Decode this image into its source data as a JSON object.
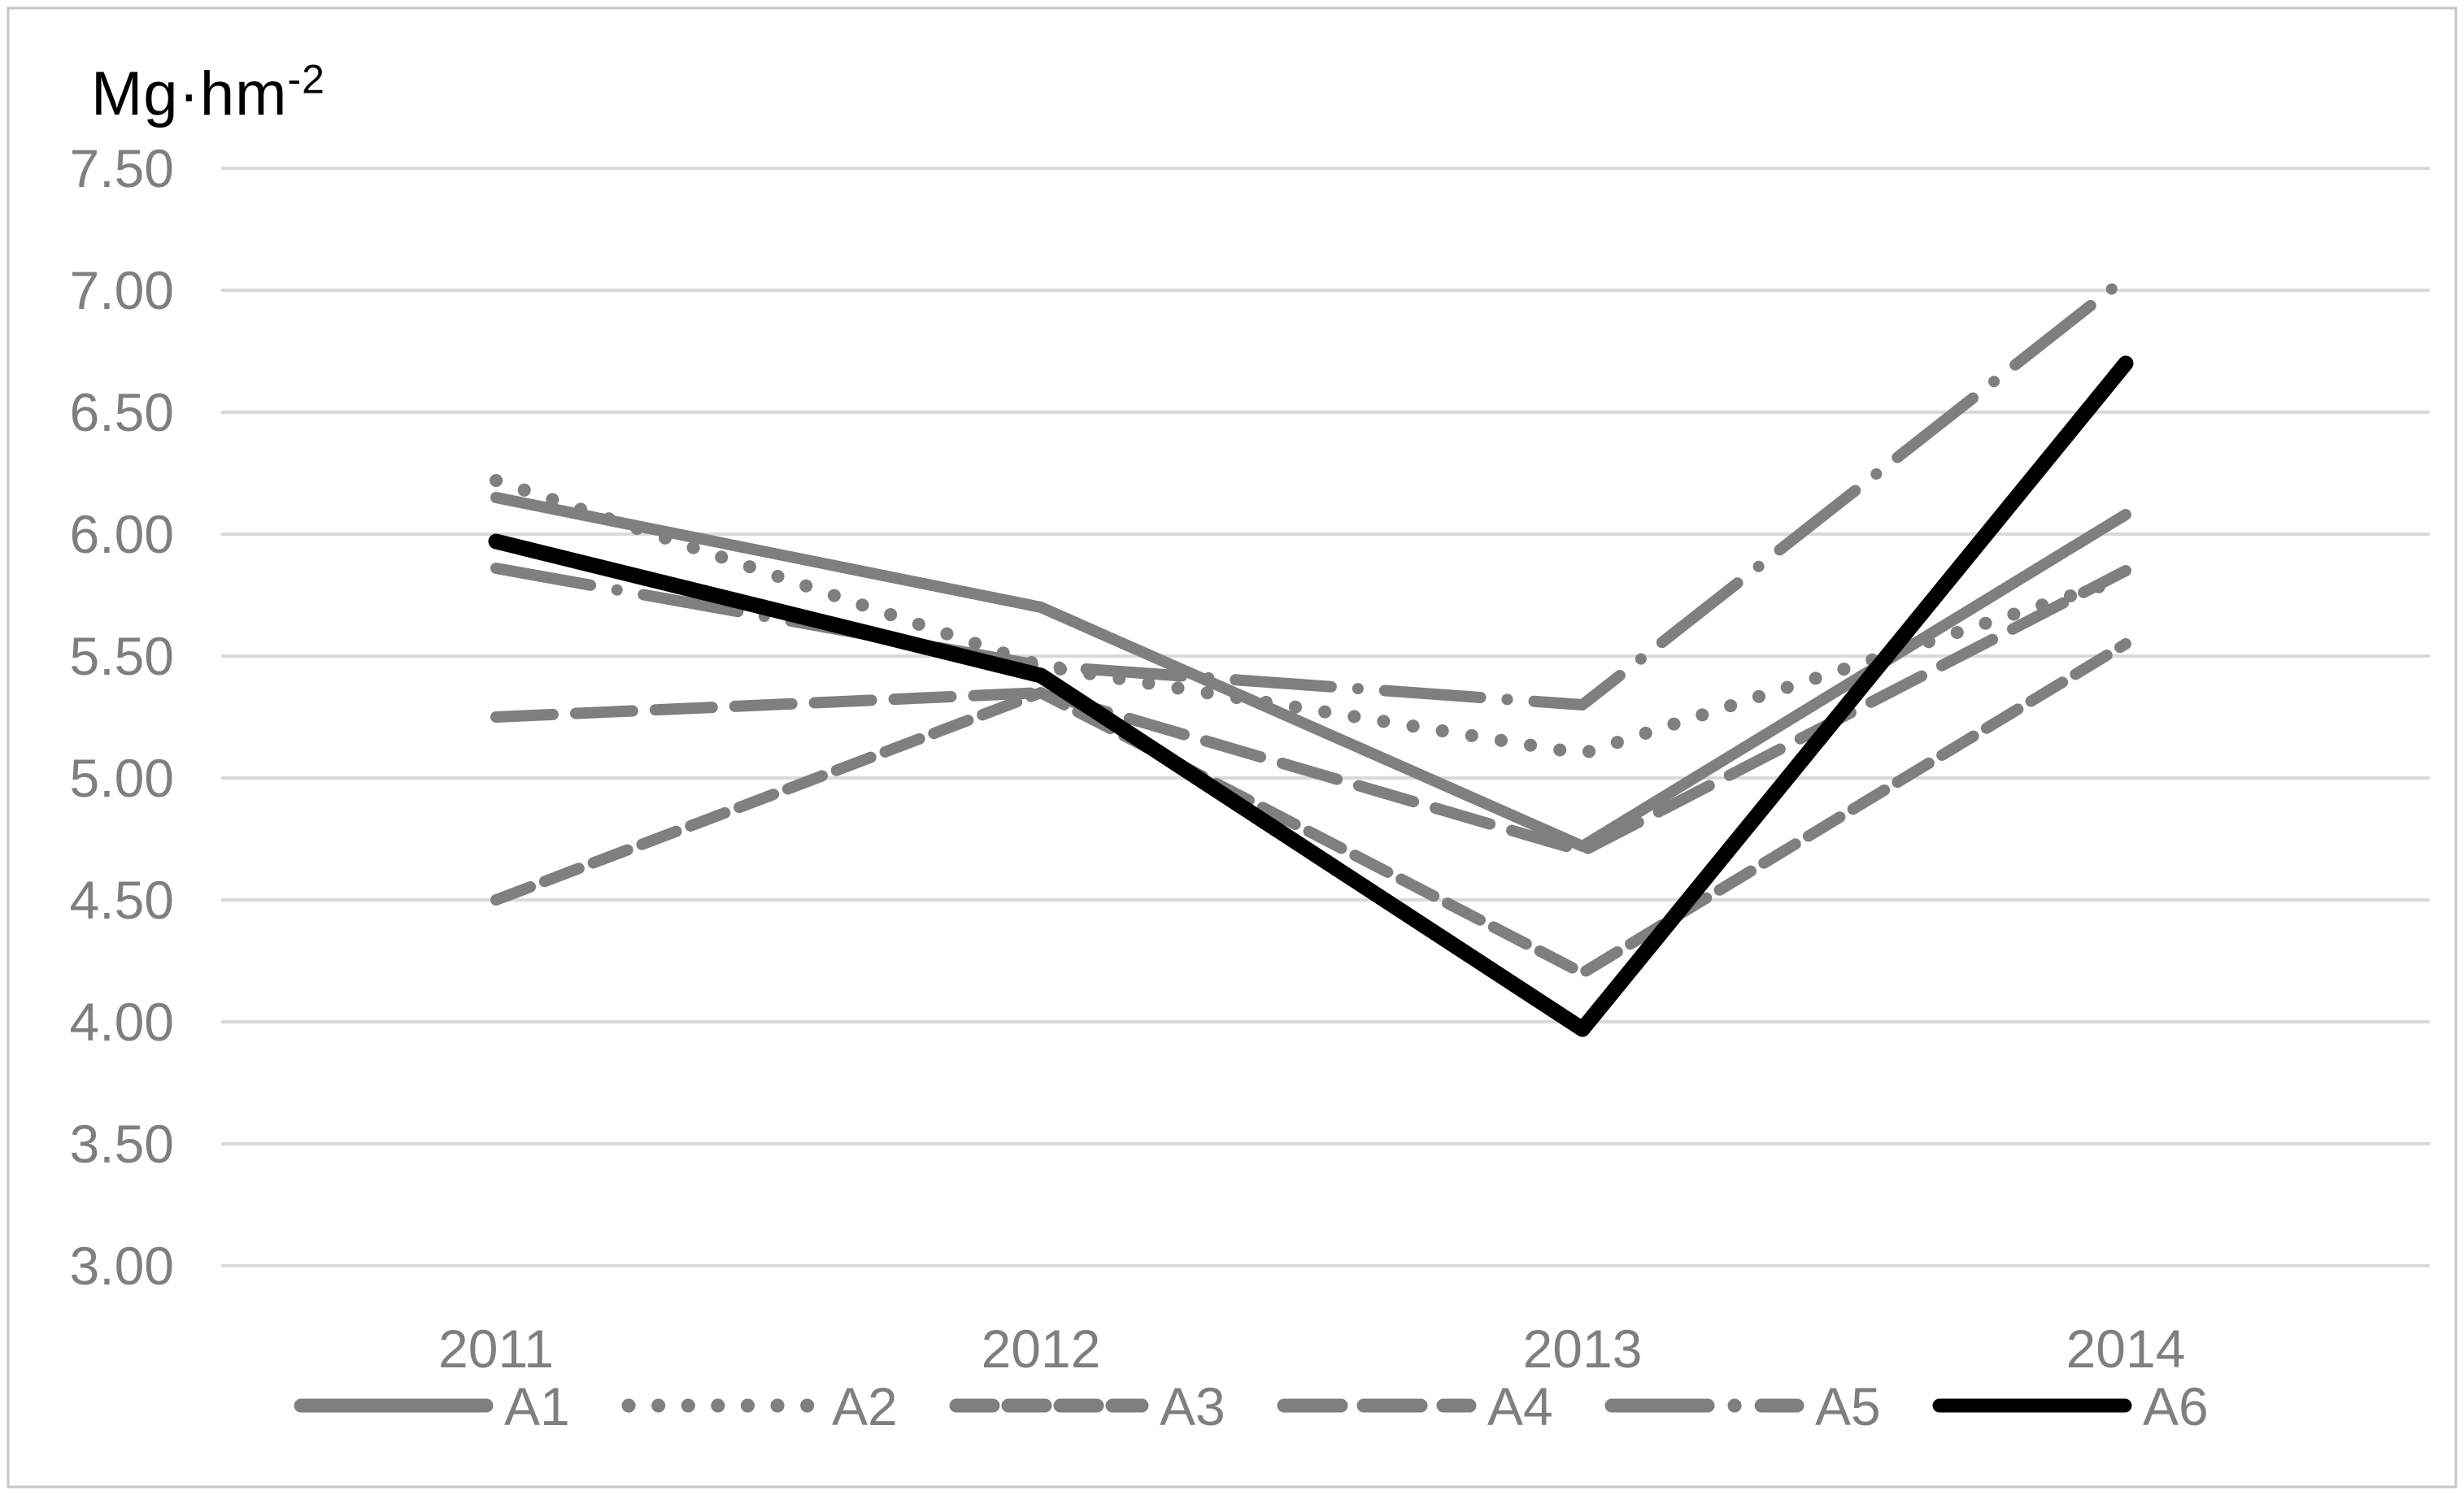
{
  "chart_data": {
    "type": "line",
    "title_unit_base": "Mg·hm",
    "title_unit_exponent": "-2",
    "categories": [
      "2011",
      "2012",
      "2013",
      "2014"
    ],
    "series": [
      {
        "name": "A1",
        "values": [
          6.15,
          5.7,
          4.72,
          6.08
        ],
        "color": "#7f7f7f",
        "style": "solid",
        "width": 14
      },
      {
        "name": "A2",
        "values": [
          6.22,
          5.46,
          5.1,
          5.82
        ],
        "color": "#7f7f7f",
        "style": "dotted",
        "width": 16
      },
      {
        "name": "A3",
        "values": [
          4.5,
          5.35,
          4.2,
          5.55
        ],
        "color": "#7f7f7f",
        "style": "dashed",
        "width": 14
      },
      {
        "name": "A4",
        "values": [
          5.25,
          5.35,
          4.7,
          5.85
        ],
        "color": "#7f7f7f",
        "style": "long-dash",
        "width": 14
      },
      {
        "name": "A5",
        "values": [
          5.86,
          5.46,
          5.3,
          7.05
        ],
        "color": "#7f7f7f",
        "style": "dash-dot",
        "width": 14
      },
      {
        "name": "A6",
        "values": [
          5.97,
          5.42,
          3.97,
          6.7
        ],
        "color": "#000000",
        "style": "solid",
        "width": 19
      }
    ],
    "ylim": [
      3.0,
      7.5
    ],
    "ytick_labels": [
      "7.50",
      "7.00",
      "6.50",
      "6.00",
      "5.50",
      "5.00",
      "4.50",
      "4.00",
      "3.50",
      "3.00"
    ],
    "ytick_values": [
      7.5,
      7.0,
      6.5,
      6.0,
      5.5,
      5.0,
      4.5,
      4.0,
      3.5,
      3.0
    ],
    "grid": true,
    "legend_position": "bottom",
    "colors": {
      "gridline": "#d9d9d9",
      "axis_text": "#7f7f7f",
      "frame_border": "#c6c6c6",
      "background": "#ffffff",
      "series_gray": "#7f7f7f",
      "series_black": "#000000"
    }
  }
}
